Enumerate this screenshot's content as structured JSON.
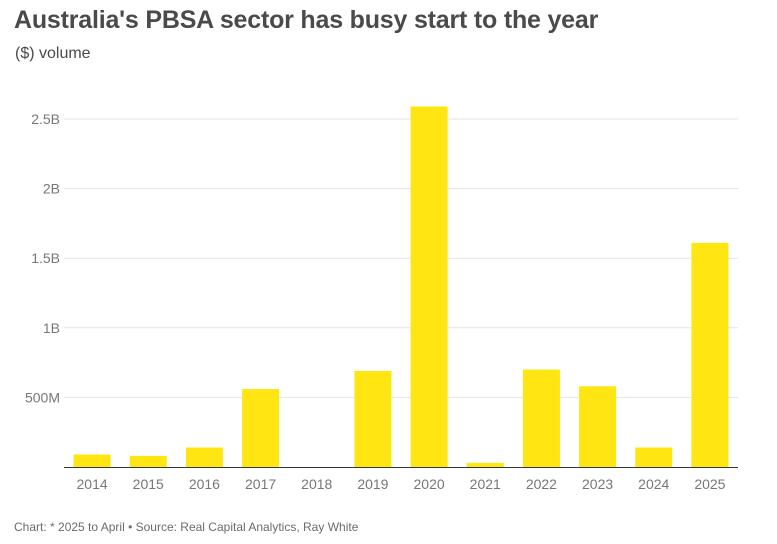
{
  "title": "Australia's PBSA sector has busy start to the year",
  "subtitle": "($) volume",
  "footer": "Chart: * 2025 to April • Source: Real Capital Analytics, Ray White",
  "colors": {
    "bar": "#ffe512",
    "grid": "#e3e3e3",
    "axis": "#333333",
    "text": "#4a4a4a"
  },
  "chart_data": {
    "type": "bar",
    "title": "Australia's PBSA sector has busy start to the year",
    "subtitle": "($) volume",
    "xlabel": "",
    "ylabel": "",
    "categories": [
      "2014",
      "2015",
      "2016",
      "2017",
      "2018",
      "2019",
      "2020",
      "2021",
      "2022",
      "2023",
      "2024",
      "2025"
    ],
    "values": [
      90000000,
      80000000,
      140000000,
      560000000,
      0,
      690000000,
      2590000000,
      30000000,
      700000000,
      580000000,
      140000000,
      1610000000
    ],
    "ylim": [
      0,
      2500000000
    ],
    "yticks": [
      500000000,
      1000000000,
      1500000000,
      2000000000,
      2500000000
    ],
    "ytick_labels": [
      "500M",
      "1B",
      "1.5B",
      "2B",
      "2.5B"
    ],
    "grid": true,
    "legend": "none"
  }
}
